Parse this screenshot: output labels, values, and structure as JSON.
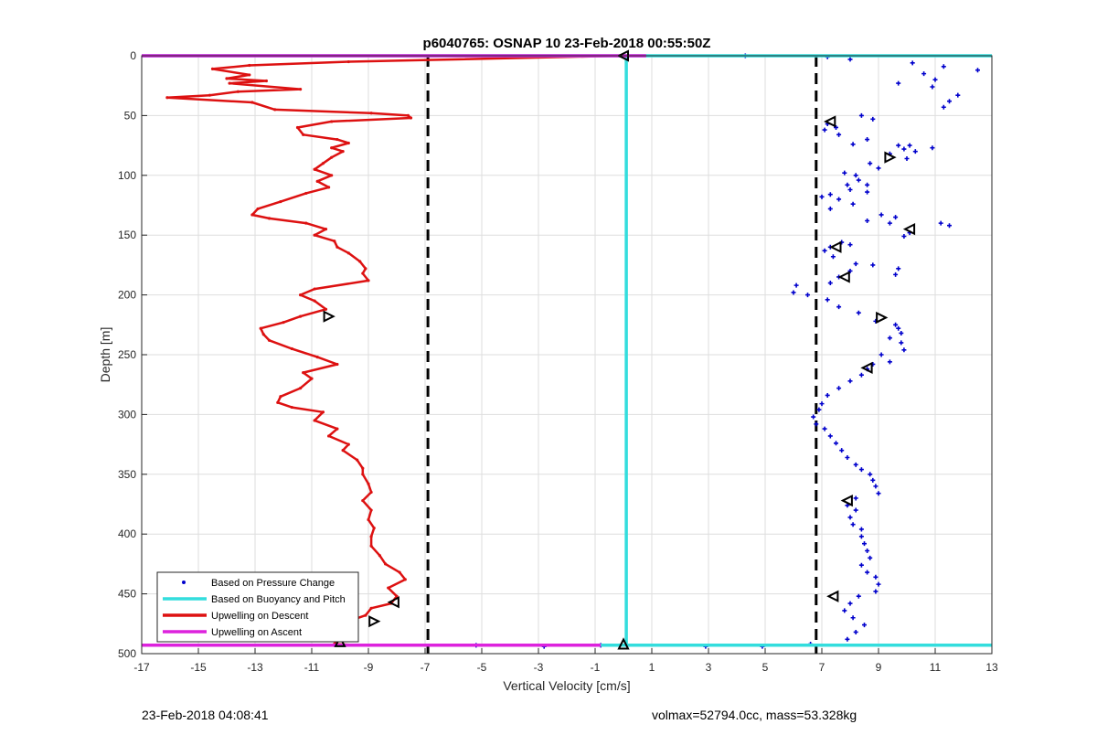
{
  "footer": {
    "left": "23-Feb-2018 04:08:41",
    "right": "volmax=52794.0cc, mass=53.328kg"
  },
  "chart_data": {
    "type": "scatter",
    "title": "p6040765: OSNAP 10 23-Feb-2018 00:55:50Z",
    "xlabel": "Vertical Velocity [cm/s]",
    "ylabel": "Depth [m]",
    "xlim": [
      -17,
      13
    ],
    "ylim": [
      0,
      500
    ],
    "y_reversed": true,
    "grid": true,
    "x_ticks": [
      -17,
      -15,
      -13,
      -11,
      -9,
      -7,
      -5,
      -3,
      -1,
      1,
      3,
      5,
      7,
      9,
      11,
      13
    ],
    "y_ticks": [
      0,
      50,
      100,
      150,
      200,
      250,
      300,
      350,
      400,
      450,
      500
    ],
    "legend_position": "bottom-left",
    "reference_lines": [
      {
        "style": "dashed",
        "color": "#000000",
        "x": -6.9
      },
      {
        "style": "dashed",
        "color": "#000000",
        "x": 6.8
      }
    ],
    "series": [
      {
        "name": "Based on Pressure Change",
        "kind": "markers",
        "color": "#0000cc",
        "points": [
          [
            4.3,
            0
          ],
          [
            7.2,
            1
          ],
          [
            8.0,
            3
          ],
          [
            10.2,
            6
          ],
          [
            11.3,
            9
          ],
          [
            12.5,
            12
          ],
          [
            10.6,
            15
          ],
          [
            11.0,
            20
          ],
          [
            9.7,
            23
          ],
          [
            10.9,
            26
          ],
          [
            11.8,
            33
          ],
          [
            11.5,
            38
          ],
          [
            11.3,
            43
          ],
          [
            8.4,
            50
          ],
          [
            8.8,
            53
          ],
          [
            7.2,
            57
          ],
          [
            7.5,
            60
          ],
          [
            7.1,
            62
          ],
          [
            7.6,
            66
          ],
          [
            8.6,
            70
          ],
          [
            8.1,
            74
          ],
          [
            9.7,
            75
          ],
          [
            10.1,
            75
          ],
          [
            9.9,
            78
          ],
          [
            10.3,
            80
          ],
          [
            10.9,
            77
          ],
          [
            9.4,
            82
          ],
          [
            10.0,
            86
          ],
          [
            8.7,
            90
          ],
          [
            9.0,
            94
          ],
          [
            7.8,
            98
          ],
          [
            8.2,
            100
          ],
          [
            8.3,
            104
          ],
          [
            7.9,
            108
          ],
          [
            8.6,
            108
          ],
          [
            8.0,
            112
          ],
          [
            7.3,
            116
          ],
          [
            7.0,
            118
          ],
          [
            8.6,
            114
          ],
          [
            7.6,
            120
          ],
          [
            8.1,
            124
          ],
          [
            7.3,
            128
          ],
          [
            9.1,
            133
          ],
          [
            9.6,
            135
          ],
          [
            8.6,
            138
          ],
          [
            9.4,
            140
          ],
          [
            11.2,
            140
          ],
          [
            11.5,
            142
          ],
          [
            10.1,
            148
          ],
          [
            9.9,
            151
          ],
          [
            7.7,
            156
          ],
          [
            7.3,
            160
          ],
          [
            7.1,
            163
          ],
          [
            8.0,
            158
          ],
          [
            7.4,
            168
          ],
          [
            8.2,
            174
          ],
          [
            8.8,
            175
          ],
          [
            9.7,
            178
          ],
          [
            8.0,
            180
          ],
          [
            7.6,
            185
          ],
          [
            7.3,
            190
          ],
          [
            9.6,
            183
          ],
          [
            6.1,
            192
          ],
          [
            6.0,
            198
          ],
          [
            6.5,
            200
          ],
          [
            7.2,
            204
          ],
          [
            7.6,
            210
          ],
          [
            8.3,
            215
          ],
          [
            8.9,
            222
          ],
          [
            9.6,
            225
          ],
          [
            9.7,
            228
          ],
          [
            9.8,
            232
          ],
          [
            9.4,
            236
          ],
          [
            9.8,
            240
          ],
          [
            9.9,
            246
          ],
          [
            9.1,
            250
          ],
          [
            9.4,
            256
          ],
          [
            8.8,
            258
          ],
          [
            8.6,
            262
          ],
          [
            8.4,
            267
          ],
          [
            8.0,
            272
          ],
          [
            7.6,
            278
          ],
          [
            7.2,
            284
          ],
          [
            7.0,
            291
          ],
          [
            6.9,
            296
          ],
          [
            6.7,
            302
          ],
          [
            6.8,
            308
          ],
          [
            7.1,
            312
          ],
          [
            7.3,
            318
          ],
          [
            7.5,
            324
          ],
          [
            7.7,
            330
          ],
          [
            7.9,
            336
          ],
          [
            8.2,
            342
          ],
          [
            8.4,
            346
          ],
          [
            8.7,
            350
          ],
          [
            8.8,
            355
          ],
          [
            8.9,
            360
          ],
          [
            9.0,
            366
          ],
          [
            8.2,
            370
          ],
          [
            7.9,
            376
          ],
          [
            8.2,
            380
          ],
          [
            8.0,
            386
          ],
          [
            8.1,
            392
          ],
          [
            8.4,
            396
          ],
          [
            8.4,
            402
          ],
          [
            8.5,
            408
          ],
          [
            8.6,
            414
          ],
          [
            8.7,
            420
          ],
          [
            8.4,
            426
          ],
          [
            8.6,
            432
          ],
          [
            8.9,
            436
          ],
          [
            9.0,
            442
          ],
          [
            8.9,
            448
          ],
          [
            8.3,
            452
          ],
          [
            8.0,
            458
          ],
          [
            7.8,
            464
          ],
          [
            8.1,
            470
          ],
          [
            8.5,
            476
          ],
          [
            8.2,
            482
          ],
          [
            7.9,
            488
          ],
          [
            -5.2,
            493
          ],
          [
            -2.8,
            494
          ],
          [
            -0.8,
            493
          ],
          [
            2.9,
            494
          ],
          [
            4.9,
            494
          ],
          [
            6.6,
            492
          ]
        ]
      },
      {
        "name": "Based on Buoyancy and Pitch",
        "kind": "line",
        "color": "#33dddd",
        "points": [
          [
            -17,
            0
          ],
          [
            13,
            0
          ],
          null,
          [
            0.1,
            0
          ],
          [
            0.1,
            493
          ],
          null,
          [
            -17,
            493
          ],
          [
            13,
            493
          ]
        ]
      },
      {
        "name": "Upwelling on Descent",
        "kind": "line",
        "color": "#dd1111",
        "points": [
          [
            -0.1,
            0
          ],
          [
            -9.7,
            5
          ],
          [
            -13.2,
            8
          ],
          [
            -14.5,
            11
          ],
          [
            -13.2,
            16
          ],
          [
            -14.0,
            19
          ],
          [
            -12.6,
            21
          ],
          [
            -13.9,
            23
          ],
          [
            -11.4,
            28
          ],
          [
            -13.6,
            30
          ],
          [
            -14.6,
            33
          ],
          [
            -16.1,
            35
          ],
          [
            -13.1,
            39
          ],
          [
            -12.3,
            45
          ],
          [
            -8.9,
            48
          ],
          [
            -7.6,
            50
          ],
          [
            -7.5,
            52
          ],
          [
            -10.3,
            55
          ],
          [
            -11.5,
            60
          ],
          [
            -11.3,
            66
          ],
          [
            -10.1,
            70
          ],
          [
            -9.7,
            73
          ],
          [
            -10.3,
            77
          ],
          [
            -9.9,
            80
          ],
          [
            -10.3,
            85
          ],
          [
            -10.6,
            90
          ],
          [
            -10.9,
            95
          ],
          [
            -10.3,
            100
          ],
          [
            -10.8,
            105
          ],
          [
            -10.4,
            110
          ],
          [
            -11.2,
            115
          ],
          [
            -12.1,
            122
          ],
          [
            -12.9,
            128
          ],
          [
            -13.1,
            133
          ],
          [
            -12.5,
            136
          ],
          [
            -11.2,
            140
          ],
          [
            -10.5,
            145
          ],
          [
            -10.9,
            150
          ],
          [
            -10.2,
            155
          ],
          [
            -10.1,
            160
          ],
          [
            -9.7,
            165
          ],
          [
            -9.3,
            172
          ],
          [
            -9.1,
            178
          ],
          [
            -9.2,
            182
          ],
          [
            -9.0,
            188
          ],
          [
            -10.9,
            195
          ],
          [
            -11.4,
            200
          ],
          [
            -10.9,
            205
          ],
          [
            -10.5,
            212
          ],
          [
            -11.4,
            218
          ],
          [
            -12.0,
            223
          ],
          [
            -12.8,
            228
          ],
          [
            -12.7,
            233
          ],
          [
            -12.5,
            238
          ],
          [
            -11.7,
            245
          ],
          [
            -10.8,
            252
          ],
          [
            -10.1,
            258
          ],
          [
            -11.3,
            265
          ],
          [
            -11.0,
            270
          ],
          [
            -11.4,
            278
          ],
          [
            -12.1,
            285
          ],
          [
            -12.2,
            290
          ],
          [
            -11.7,
            294
          ],
          [
            -10.6,
            298
          ],
          [
            -10.9,
            305
          ],
          [
            -10.1,
            312
          ],
          [
            -10.4,
            318
          ],
          [
            -9.7,
            325
          ],
          [
            -9.9,
            330
          ],
          [
            -9.4,
            338
          ],
          [
            -9.2,
            345
          ],
          [
            -9.2,
            350
          ],
          [
            -9.0,
            358
          ],
          [
            -8.9,
            365
          ],
          [
            -9.2,
            372
          ],
          [
            -8.9,
            380
          ],
          [
            -9.0,
            388
          ],
          [
            -8.8,
            395
          ],
          [
            -8.9,
            402
          ],
          [
            -8.9,
            410
          ],
          [
            -8.6,
            418
          ],
          [
            -8.4,
            425
          ],
          [
            -7.9,
            432
          ],
          [
            -7.7,
            438
          ],
          [
            -8.3,
            445
          ],
          [
            -8.0,
            452
          ],
          [
            -8.2,
            458
          ],
          [
            -8.9,
            462
          ],
          [
            -9.1,
            468
          ],
          [
            -9.6,
            472
          ],
          [
            -9.8,
            478
          ],
          [
            -10.1,
            482
          ],
          [
            -10.1,
            488
          ],
          [
            -10.2,
            492
          ],
          [
            -9.3,
            493
          ],
          [
            -0.1,
            493
          ]
        ]
      },
      {
        "name": "Upwelling on Ascent",
        "kind": "line",
        "color": "#dd22dd",
        "points": [
          [
            -17,
            0
          ],
          [
            0.8,
            0
          ],
          null,
          [
            -17,
            493
          ],
          [
            -0.8,
            493
          ]
        ]
      }
    ],
    "markers": [
      {
        "shape": "triangle-left",
        "x": 0.0,
        "y": 0
      },
      {
        "shape": "triangle-left",
        "x": 7.3,
        "y": 55
      },
      {
        "shape": "triangle-right",
        "x": 9.4,
        "y": 85
      },
      {
        "shape": "triangle-left",
        "x": 10.1,
        "y": 145
      },
      {
        "shape": "triangle-left",
        "x": 7.5,
        "y": 160
      },
      {
        "shape": "triangle-left",
        "x": 7.8,
        "y": 185
      },
      {
        "shape": "triangle-right",
        "x": -10.4,
        "y": 218
      },
      {
        "shape": "triangle-right",
        "x": 9.1,
        "y": 219
      },
      {
        "shape": "triangle-left",
        "x": 8.6,
        "y": 261
      },
      {
        "shape": "triangle-left",
        "x": 7.9,
        "y": 372
      },
      {
        "shape": "triangle-left",
        "x": 7.4,
        "y": 452
      },
      {
        "shape": "triangle-left",
        "x": -8.1,
        "y": 457
      },
      {
        "shape": "triangle-right",
        "x": -8.8,
        "y": 473
      },
      {
        "shape": "triangle-up",
        "x": -10.0,
        "y": 490
      },
      {
        "shape": "triangle-up",
        "x": 0.0,
        "y": 492
      }
    ]
  }
}
